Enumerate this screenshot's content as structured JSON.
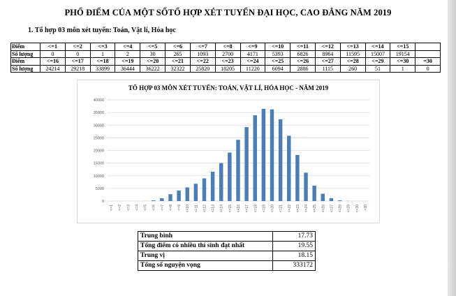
{
  "document": {
    "title": "PHỔ ĐIỂM CỦA MỘT SỐTỔ HỢP XÉT TUYỂN ĐẠI HỌC, CAO ĐẲNG NĂM 2019",
    "section": "1. Tổ hợp 03 môn xét tuyển: Toán, Vật lí, Hóa học"
  },
  "table": {
    "point_label": "Điểm",
    "count_label": "Số lượng",
    "row1": {
      "points": [
        "<=1",
        "<=2",
        "<=3",
        "<=4",
        "<=5",
        "<=6",
        "<=7",
        "<=8",
        "<=9",
        "<=10",
        "<=11",
        "<=12",
        "<=13",
        "<=14",
        "<=15"
      ],
      "counts": [
        "0",
        "0",
        "1",
        "2",
        "30",
        "265",
        "1093",
        "2700",
        "4171",
        "5393",
        "6826",
        "8964",
        "11595",
        "15007",
        "19154"
      ]
    },
    "row2": {
      "points": [
        "<=16",
        "<=17",
        "<=18",
        "<=19",
        "<=20",
        "<=21",
        "<=22",
        "<=23",
        "<=24",
        "<=25",
        "<=26",
        "<=27",
        "<=28",
        "<=29",
        "<=30",
        "=30"
      ],
      "counts": [
        "24214",
        "29218",
        "33899",
        "36444",
        "36222",
        "32322",
        "25820",
        "18205",
        "11220",
        "6094",
        "2886",
        "1115",
        "260",
        "51",
        "1",
        "0"
      ]
    }
  },
  "chart_data": {
    "type": "bar",
    "title": "TỔ HỢP 03 MÔN XÉT TUYỂN: TOÁN, VẬT LÍ, HÓA HỌC - NĂM 2019",
    "categories": [
      "<=1",
      "<=2",
      "<=3",
      "<=4",
      "<=5",
      "<=6",
      "<=7",
      "<=8",
      "<=9",
      "<=10",
      "<=11",
      "<=12",
      "<=13",
      "<=14",
      "<=15",
      "<=16",
      "<=17",
      "<=18",
      "<=19",
      "<=20",
      "<=21",
      "<=22",
      "<=23",
      "<=24",
      "<=25",
      "<=26",
      "<=27",
      "<=28",
      "<=29",
      "<=30",
      "=30"
    ],
    "values": [
      0,
      0,
      1,
      2,
      30,
      265,
      1093,
      2700,
      4171,
      5393,
      6826,
      8964,
      11595,
      15007,
      19154,
      24214,
      29218,
      33899,
      36444,
      36222,
      32322,
      25820,
      18205,
      11220,
      6094,
      2886,
      1115,
      260,
      51,
      1,
      0
    ],
    "yticks": [
      "0",
      "5000",
      "10000",
      "15000",
      "20000",
      "25000",
      "30000",
      "35000",
      "40000"
    ],
    "ylim": [
      0,
      40000
    ],
    "grid": true,
    "bar_color": "#4a7ebb"
  },
  "stats": [
    {
      "label": "Trung bình",
      "value": "17.73"
    },
    {
      "label": "Tổng điểm có nhiều thí sinh đạt nhất",
      "value": "19.55"
    },
    {
      "label": "Trung vị",
      "value": "18.15"
    },
    {
      "label": "Tổng số nguyện vọng",
      "value": "333172"
    }
  ]
}
